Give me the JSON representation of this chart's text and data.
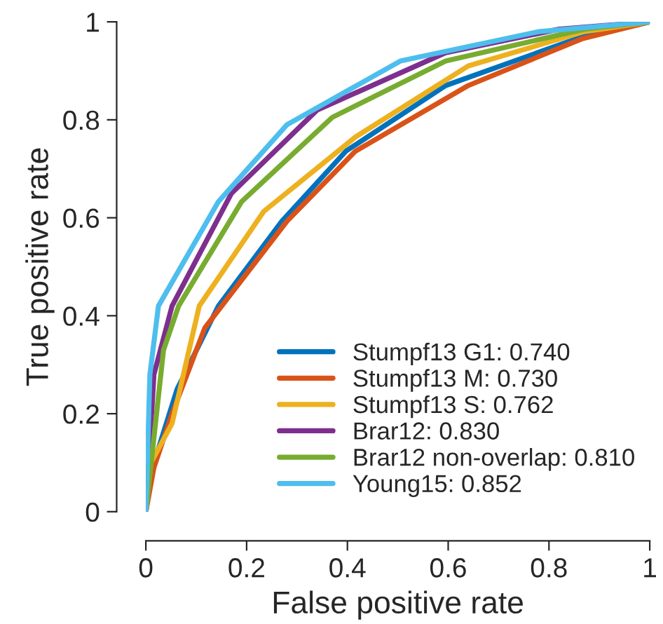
{
  "chart_data": {
    "type": "line",
    "xlabel": "False positive rate",
    "ylabel": "True positive rate",
    "xlim": [
      0,
      1
    ],
    "ylim": [
      0,
      1
    ],
    "xticks": [
      0,
      0.2,
      0.4,
      0.6,
      0.8,
      1
    ],
    "yticks": [
      0,
      0.2,
      0.4,
      0.6,
      0.8,
      1
    ],
    "grid": false,
    "legend": "bottom right",
    "marker": "none",
    "line_style": "solid",
    "series": [
      {
        "name": "Stumpf13 G1: 0.740",
        "color": "#0072bd",
        "x": [
          0,
          0.01,
          0.062,
          0.144,
          0.27,
          0.397,
          0.595,
          0.867,
          1
        ],
        "values": [
          0,
          0.08,
          0.25,
          0.42,
          0.593,
          0.736,
          0.87,
          0.97,
          1
        ]
      },
      {
        "name": "Stumpf13 M: 0.730",
        "color": "#d95319",
        "x": [
          0,
          0.016,
          0.052,
          0.117,
          0.28,
          0.416,
          0.64,
          0.867,
          1
        ],
        "values": [
          0,
          0.09,
          0.2,
          0.375,
          0.593,
          0.736,
          0.87,
          0.966,
          1
        ]
      },
      {
        "name": "Stumpf13 S: 0.762",
        "color": "#edb120",
        "x": [
          0,
          0.01,
          0.052,
          0.106,
          0.234,
          0.416,
          0.64,
          0.87,
          1
        ],
        "values": [
          0,
          0.1,
          0.18,
          0.42,
          0.613,
          0.765,
          0.91,
          0.98,
          1
        ]
      },
      {
        "name": "Brar12: 0.830",
        "color": "#7e2f8e",
        "x": [
          0,
          0.016,
          0.052,
          0.17,
          0.34,
          0.595,
          0.82,
          1
        ],
        "values": [
          0,
          0.28,
          0.42,
          0.65,
          0.82,
          0.937,
          0.985,
          1
        ]
      },
      {
        "name": "Brar12 non-overlap: 0.810",
        "color": "#77ac30",
        "x": [
          0,
          0.035,
          0.065,
          0.19,
          0.37,
          0.595,
          0.87,
          1
        ],
        "values": [
          0,
          0.33,
          0.42,
          0.633,
          0.805,
          0.92,
          0.985,
          1
        ]
      },
      {
        "name": "Young15: 0.852",
        "color": "#4dbeee",
        "x": [
          0,
          0.008,
          0.025,
          0.144,
          0.28,
          0.505,
          0.78,
          1
        ],
        "values": [
          0,
          0.28,
          0.42,
          0.633,
          0.79,
          0.92,
          0.98,
          1
        ]
      }
    ]
  }
}
